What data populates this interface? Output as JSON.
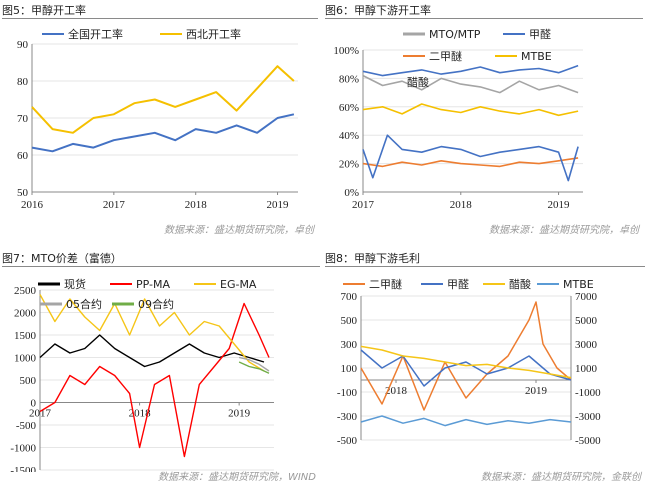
{
  "panels": [
    {
      "title": "图5：甲醇开工率",
      "source": "数据来源：盛达期货研究院，卓创"
    },
    {
      "title": "图6：甲醇下游开工率",
      "source": "数据来源：盛达期货研究院，卓创"
    },
    {
      "title": "图7：MTO价差（富德）",
      "source": "数据来源：盛达期货研究院，WIND"
    },
    {
      "title": "图8：甲醇下游毛利",
      "source": "数据来源：盛达期货研究院，金联创"
    }
  ],
  "colors": {
    "blue": "#4472c4",
    "gold": "#f5c000",
    "gray": "#a5a5a5",
    "orange": "#ed7d31",
    "black": "#000000",
    "red": "#ff0000",
    "lightgold": "#f5c518",
    "lightblue": "#5b9bd5",
    "green": "#70ad47"
  },
  "chart_data": [
    {
      "type": "line",
      "ylim": [
        50,
        90
      ],
      "yticks": [
        "50",
        "60",
        "70",
        "80",
        "90"
      ],
      "xticks": [
        "2016",
        "2017",
        "2018",
        "2019"
      ],
      "xrange": [
        2016,
        2019.25
      ],
      "series": [
        {
          "name": "全国开工率",
          "color": "blue",
          "x": [
            2016.0,
            2016.25,
            2016.5,
            2016.75,
            2017.0,
            2017.25,
            2017.5,
            2017.75,
            2018.0,
            2018.25,
            2018.5,
            2018.75,
            2019.0,
            2019.2
          ],
          "values": [
            62,
            61,
            63,
            62,
            64,
            65,
            66,
            64,
            67,
            66,
            68,
            66,
            70,
            71
          ]
        },
        {
          "name": "西北开工率",
          "color": "gold",
          "x": [
            2016.0,
            2016.25,
            2016.5,
            2016.75,
            2017.0,
            2017.25,
            2017.5,
            2017.75,
            2018.0,
            2018.25,
            2018.5,
            2018.75,
            2019.0,
            2019.2
          ],
          "values": [
            73,
            67,
            66,
            70,
            71,
            74,
            75,
            73,
            75,
            77,
            72,
            78,
            84,
            80
          ]
        }
      ]
    },
    {
      "type": "line",
      "ylim": [
        0,
        100
      ],
      "yticks": [
        "0%",
        "20%",
        "40%",
        "60%",
        "80%",
        "100%"
      ],
      "xticks": [
        "2017",
        "2018",
        "2019"
      ],
      "xrange": [
        2017,
        2019.25
      ],
      "series": [
        {
          "name": "MTO/MTP",
          "color": "gray",
          "x": [
            2017.0,
            2017.2,
            2017.4,
            2017.6,
            2017.8,
            2018.0,
            2018.2,
            2018.4,
            2018.6,
            2018.8,
            2019.0,
            2019.2
          ],
          "values": [
            82,
            75,
            78,
            72,
            80,
            76,
            74,
            70,
            78,
            72,
            75,
            70
          ]
        },
        {
          "name": "甲醛",
          "color": "blue",
          "x": [
            2017.0,
            2017.2,
            2017.4,
            2017.6,
            2017.8,
            2018.0,
            2018.2,
            2018.4,
            2018.6,
            2018.8,
            2019.0,
            2019.2
          ],
          "values": [
            85,
            82,
            84,
            86,
            83,
            85,
            88,
            84,
            86,
            87,
            84,
            89
          ]
        },
        {
          "name": "二甲醚",
          "color": "orange",
          "x": [
            2017.0,
            2017.2,
            2017.4,
            2017.6,
            2017.8,
            2018.0,
            2018.2,
            2018.4,
            2018.6,
            2018.8,
            2019.0,
            2019.2
          ],
          "values": [
            20,
            18,
            21,
            19,
            22,
            20,
            19,
            18,
            21,
            20,
            22,
            24
          ]
        },
        {
          "name": "MTBE",
          "color": "gold",
          "x": [
            2017.0,
            2017.2,
            2017.4,
            2017.6,
            2017.8,
            2018.0,
            2018.2,
            2018.4,
            2018.6,
            2018.8,
            2019.0,
            2019.2
          ],
          "values": [
            58,
            60,
            55,
            62,
            58,
            56,
            60,
            57,
            55,
            58,
            54,
            57
          ]
        },
        {
          "name": "醋酸",
          "color": "blue",
          "x": [
            2017.0,
            2017.1,
            2017.25,
            2017.4,
            2017.6,
            2017.8,
            2018.0,
            2018.2,
            2018.4,
            2018.6,
            2018.8,
            2019.0,
            2019.1,
            2019.2
          ],
          "values": [
            30,
            10,
            40,
            30,
            28,
            32,
            30,
            25,
            28,
            30,
            32,
            28,
            8,
            32
          ]
        }
      ]
    },
    {
      "type": "line",
      "ylim": [
        -1500,
        2500
      ],
      "yticks": [
        "-1500",
        "-1000",
        "-500",
        "0",
        "500",
        "1000",
        "1500",
        "2000",
        "2500"
      ],
      "xticks": [
        "2017",
        "2018",
        "2019"
      ],
      "xrange": [
        2017,
        2019.35
      ],
      "series": [
        {
          "name": "现货",
          "color": "black",
          "x": [
            2017.0,
            2017.15,
            2017.3,
            2017.45,
            2017.6,
            2017.75,
            2017.9,
            2018.05,
            2018.2,
            2018.35,
            2018.5,
            2018.65,
            2018.8,
            2018.95,
            2019.1,
            2019.25
          ],
          "values": [
            1000,
            1300,
            1100,
            1200,
            1500,
            1200,
            1000,
            800,
            900,
            1100,
            1300,
            1100,
            1000,
            1100,
            1000,
            900
          ]
        },
        {
          "name": "PP-MA",
          "color": "red",
          "x": [
            2017.0,
            2017.15,
            2017.3,
            2017.45,
            2017.6,
            2017.75,
            2017.9,
            2018.0,
            2018.15,
            2018.3,
            2018.45,
            2018.6,
            2018.75,
            2018.9,
            2019.05,
            2019.2,
            2019.3
          ],
          "values": [
            -200,
            0,
            600,
            400,
            800,
            600,
            200,
            -1000,
            400,
            600,
            -1200,
            400,
            800,
            1200,
            2200,
            1500,
            1000
          ]
        },
        {
          "name": "EG-MA",
          "color": "lightgold",
          "x": [
            2017.0,
            2017.15,
            2017.3,
            2017.45,
            2017.6,
            2017.75,
            2017.9,
            2018.05,
            2018.2,
            2018.35,
            2018.5,
            2018.65,
            2018.8,
            2018.95,
            2019.1,
            2019.25
          ],
          "values": [
            2400,
            1800,
            2300,
            1900,
            1600,
            2200,
            1500,
            2300,
            1700,
            2000,
            1500,
            1800,
            1700,
            1300,
            900,
            700
          ]
        },
        {
          "name": "05合约",
          "color": "gray",
          "x": [
            2019.0,
            2019.1,
            2019.2,
            2019.3
          ],
          "values": [
            1000,
            950,
            850,
            700
          ]
        },
        {
          "name": "09合约",
          "color": "green",
          "x": [
            2019.0,
            2019.1,
            2019.2,
            2019.3
          ],
          "values": [
            900,
            800,
            750,
            650
          ]
        }
      ]
    },
    {
      "type": "line",
      "ylim": [
        -500,
        700
      ],
      "yticks": [
        "-500",
        "-300",
        "-100",
        "100",
        "300",
        "500",
        "700"
      ],
      "y2lim": [
        -5000,
        7000
      ],
      "y2ticks": [
        "-5000",
        "-3000",
        "-1000",
        "1000",
        "3000",
        "5000",
        "7000"
      ],
      "xticks": [
        "2018",
        "2019"
      ],
      "xrange": [
        2017.75,
        2019.25
      ],
      "series": [
        {
          "name": "二甲醚",
          "color": "orange",
          "axis": "left",
          "x": [
            2017.75,
            2017.9,
            2018.05,
            2018.2,
            2018.35,
            2018.5,
            2018.65,
            2018.8,
            2018.95,
            2019.0,
            2019.05,
            2019.15,
            2019.25
          ],
          "values": [
            100,
            -200,
            200,
            -250,
            150,
            -150,
            50,
            200,
            500,
            650,
            300,
            100,
            0
          ]
        },
        {
          "name": "甲醛",
          "color": "blue",
          "axis": "left",
          "x": [
            2017.75,
            2017.9,
            2018.05,
            2018.2,
            2018.35,
            2018.5,
            2018.65,
            2018.8,
            2018.95,
            2019.1,
            2019.25
          ],
          "values": [
            250,
            100,
            200,
            -50,
            100,
            150,
            50,
            100,
            200,
            50,
            0
          ]
        },
        {
          "name": "醋酸",
          "color": "lightgold",
          "axis": "right",
          "x": [
            2017.75,
            2017.9,
            2018.05,
            2018.2,
            2018.35,
            2018.5,
            2018.65,
            2018.8,
            2018.95,
            2019.1,
            2019.25
          ],
          "values": [
            2800,
            2500,
            2000,
            1800,
            1500,
            1200,
            1300,
            1000,
            800,
            500,
            200
          ]
        },
        {
          "name": "MTBE",
          "color": "lightblue",
          "axis": "right",
          "x": [
            2017.75,
            2017.9,
            2018.05,
            2018.2,
            2018.35,
            2018.5,
            2018.65,
            2018.8,
            2018.95,
            2019.1,
            2019.25
          ],
          "values": [
            -3500,
            -3000,
            -3600,
            -3200,
            -3800,
            -3300,
            -3700,
            -3400,
            -3600,
            -3300,
            -3500
          ]
        }
      ]
    }
  ]
}
